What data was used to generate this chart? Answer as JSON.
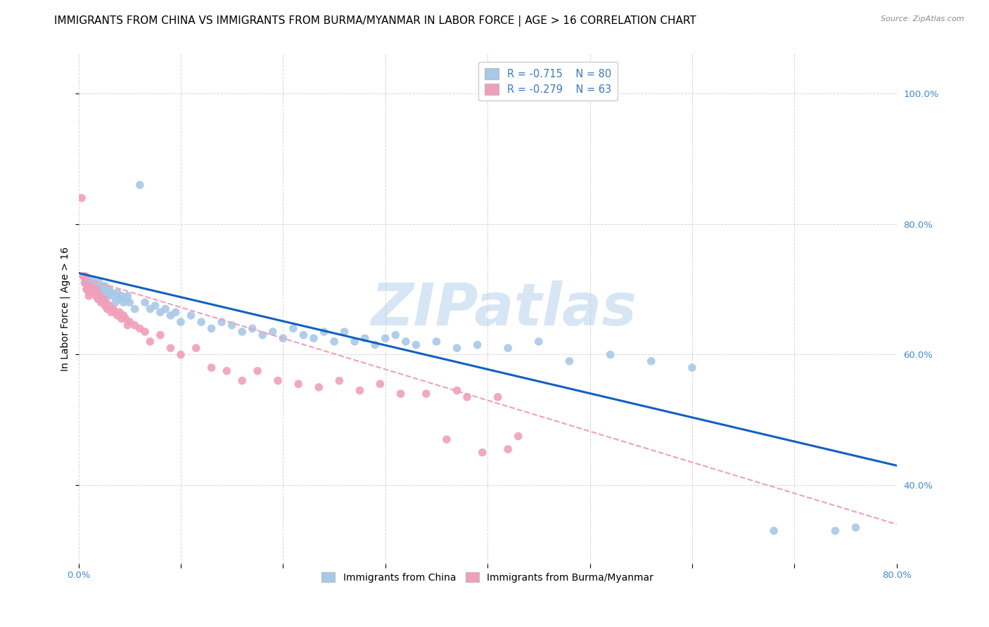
{
  "title": "IMMIGRANTS FROM CHINA VS IMMIGRANTS FROM BURMA/MYANMAR IN LABOR FORCE | AGE > 16 CORRELATION CHART",
  "source": "Source: ZipAtlas.com",
  "ylabel": "In Labor Force | Age > 16",
  "xlim": [
    0.0,
    0.8
  ],
  "ylim": [
    0.28,
    1.06
  ],
  "ytick_labels_right": [
    "40.0%",
    "60.0%",
    "80.0%",
    "100.0%"
  ],
  "ytick_vals": [
    0.4,
    0.6,
    0.8,
    1.0
  ],
  "blue_color": "#a8c8e8",
  "pink_color": "#f0a0b8",
  "blue_line_color": "#1060c0",
  "pink_line_color": "#d06080",
  "legend_R_china": "-0.715",
  "legend_N_china": "80",
  "legend_R_burma": "-0.279",
  "legend_N_burma": "63",
  "watermark": "ZIPatlas",
  "watermark_color": "#a8c8e8",
  "china_scatter_x": [
    0.005,
    0.007,
    0.008,
    0.009,
    0.01,
    0.011,
    0.012,
    0.013,
    0.014,
    0.015,
    0.016,
    0.017,
    0.018,
    0.019,
    0.02,
    0.021,
    0.022,
    0.023,
    0.024,
    0.025,
    0.026,
    0.027,
    0.028,
    0.029,
    0.03,
    0.032,
    0.034,
    0.036,
    0.038,
    0.04,
    0.042,
    0.044,
    0.046,
    0.048,
    0.05,
    0.055,
    0.06,
    0.065,
    0.07,
    0.075,
    0.08,
    0.085,
    0.09,
    0.095,
    0.1,
    0.11,
    0.12,
    0.13,
    0.14,
    0.15,
    0.16,
    0.17,
    0.18,
    0.19,
    0.2,
    0.21,
    0.22,
    0.23,
    0.24,
    0.25,
    0.26,
    0.27,
    0.28,
    0.29,
    0.3,
    0.31,
    0.32,
    0.33,
    0.35,
    0.37,
    0.39,
    0.42,
    0.45,
    0.48,
    0.52,
    0.56,
    0.6,
    0.68,
    0.74,
    0.76
  ],
  "china_scatter_y": [
    0.72,
    0.71,
    0.7,
    0.715,
    0.705,
    0.695,
    0.71,
    0.7,
    0.715,
    0.705,
    0.695,
    0.705,
    0.7,
    0.69,
    0.71,
    0.7,
    0.695,
    0.705,
    0.7,
    0.69,
    0.705,
    0.695,
    0.7,
    0.69,
    0.7,
    0.695,
    0.69,
    0.68,
    0.695,
    0.685,
    0.69,
    0.68,
    0.685,
    0.69,
    0.68,
    0.67,
    0.86,
    0.68,
    0.67,
    0.675,
    0.665,
    0.67,
    0.66,
    0.665,
    0.65,
    0.66,
    0.65,
    0.64,
    0.65,
    0.645,
    0.635,
    0.64,
    0.63,
    0.635,
    0.625,
    0.64,
    0.63,
    0.625,
    0.635,
    0.62,
    0.635,
    0.62,
    0.625,
    0.615,
    0.625,
    0.63,
    0.62,
    0.615,
    0.62,
    0.61,
    0.615,
    0.61,
    0.62,
    0.59,
    0.6,
    0.59,
    0.58,
    0.33,
    0.33,
    0.335
  ],
  "burma_scatter_x": [
    0.003,
    0.005,
    0.006,
    0.007,
    0.008,
    0.009,
    0.01,
    0.011,
    0.012,
    0.013,
    0.014,
    0.015,
    0.016,
    0.017,
    0.018,
    0.019,
    0.02,
    0.021,
    0.022,
    0.023,
    0.024,
    0.025,
    0.026,
    0.027,
    0.028,
    0.03,
    0.032,
    0.034,
    0.036,
    0.038,
    0.04,
    0.042,
    0.044,
    0.046,
    0.048,
    0.05,
    0.055,
    0.06,
    0.065,
    0.07,
    0.08,
    0.09,
    0.1,
    0.115,
    0.13,
    0.145,
    0.16,
    0.175,
    0.195,
    0.215,
    0.235,
    0.255,
    0.275,
    0.295,
    0.315,
    0.34,
    0.36,
    0.37,
    0.38,
    0.395,
    0.41,
    0.42,
    0.43
  ],
  "burma_scatter_y": [
    0.84,
    0.72,
    0.71,
    0.72,
    0.7,
    0.705,
    0.69,
    0.7,
    0.705,
    0.695,
    0.7,
    0.695,
    0.7,
    0.69,
    0.7,
    0.685,
    0.69,
    0.685,
    0.68,
    0.685,
    0.68,
    0.685,
    0.675,
    0.68,
    0.67,
    0.675,
    0.665,
    0.67,
    0.665,
    0.66,
    0.665,
    0.655,
    0.66,
    0.655,
    0.645,
    0.65,
    0.645,
    0.64,
    0.635,
    0.62,
    0.63,
    0.61,
    0.6,
    0.61,
    0.58,
    0.575,
    0.56,
    0.575,
    0.56,
    0.555,
    0.55,
    0.56,
    0.545,
    0.555,
    0.54,
    0.54,
    0.47,
    0.545,
    0.535,
    0.45,
    0.535,
    0.455,
    0.475
  ],
  "china_line_x": [
    0.0,
    0.8
  ],
  "china_line_y": [
    0.725,
    0.43
  ],
  "burma_line_x": [
    0.0,
    0.8
  ],
  "burma_line_y": [
    0.72,
    0.34
  ],
  "background_color": "#ffffff",
  "grid_color": "#cccccc",
  "title_fontsize": 11,
  "axis_label_fontsize": 10,
  "tick_fontsize": 9.5
}
